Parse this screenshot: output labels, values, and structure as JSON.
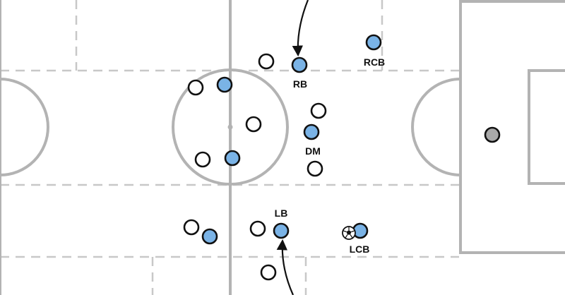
{
  "colors": {
    "pitch_line": "#b3b3b3",
    "zone_line": "#c8c8c8",
    "attacking_team": "#7ab3e6",
    "defending_team": "#ffffff",
    "goalkeeper": "#a9a9a9",
    "outline": "#111111"
  },
  "labels": {
    "rb": "RB",
    "rcb": "RCB",
    "dm": "DM",
    "lb": "LB",
    "lcb": "LCB"
  },
  "ball_icon": "soccer-ball-icon",
  "arrow_icon": "movement-arrow-icon"
}
